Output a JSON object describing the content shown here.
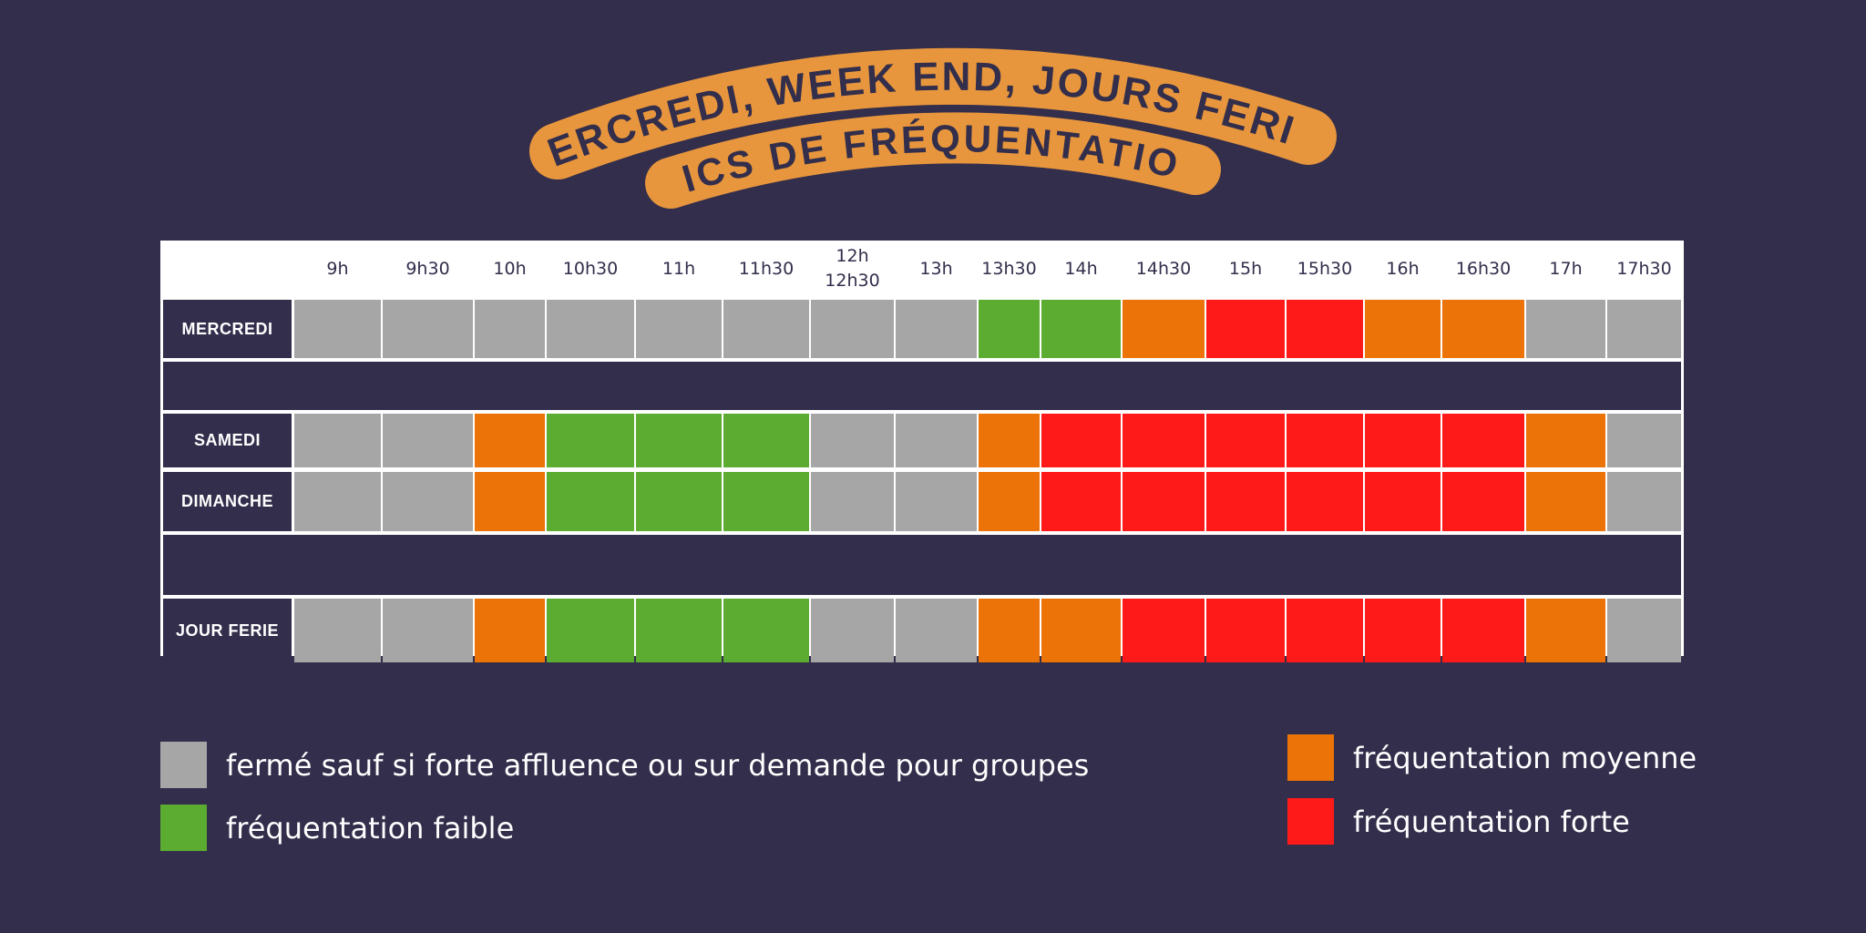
{
  "banner": {
    "line1": "MERCREDI, WEEK END, JOURS FERIES",
    "line2": "PICS DE FRÉQUENTATION",
    "color": "#e8963d",
    "text_color": "#322e4b"
  },
  "colors": {
    "background": "#322e4b",
    "closed": "#a6a6a6",
    "low": "#5bac30",
    "medium": "#ec7308",
    "high": "#ff1a1a"
  },
  "chart_data": {
    "type": "heatmap",
    "time_slots": [
      "9h",
      "9h30",
      "10h",
      "10h30",
      "11h",
      "11h30",
      "12h\n12h30",
      "13h",
      "13h30",
      "14h",
      "14h30",
      "15h",
      "15h30",
      "16h",
      "16h30",
      "17h",
      "17h30"
    ],
    "rows": [
      {
        "label": "MERCREDI",
        "values": [
          "closed",
          "closed",
          "closed",
          "closed",
          "closed",
          "closed",
          "closed",
          "closed",
          "low",
          "low",
          "medium",
          "high",
          "high",
          "medium",
          "medium",
          "closed",
          "closed"
        ]
      },
      {
        "label": "SAMEDI",
        "values": [
          "closed",
          "closed",
          "medium",
          "low",
          "low",
          "low",
          "closed",
          "closed",
          "medium",
          "high",
          "high",
          "high",
          "high",
          "high",
          "high",
          "medium",
          "closed"
        ]
      },
      {
        "label": "DIMANCHE",
        "values": [
          "closed",
          "closed",
          "medium",
          "low",
          "low",
          "low",
          "closed",
          "closed",
          "medium",
          "high",
          "high",
          "high",
          "high",
          "high",
          "high",
          "medium",
          "closed"
        ]
      },
      {
        "label": "JOUR FERIE",
        "values": [
          "closed",
          "closed",
          "medium",
          "low",
          "low",
          "low",
          "closed",
          "closed",
          "medium",
          "medium",
          "high",
          "high",
          "high",
          "high",
          "high",
          "medium",
          "closed"
        ]
      }
    ]
  },
  "legend": [
    {
      "key": "closed",
      "label": "fermé sauf si forte affluence ou sur demande pour groupes"
    },
    {
      "key": "low",
      "label": "fréquentation faible"
    },
    {
      "key": "medium",
      "label": "fréquentation moyenne"
    },
    {
      "key": "high",
      "label": "fréquentation forte"
    }
  ]
}
